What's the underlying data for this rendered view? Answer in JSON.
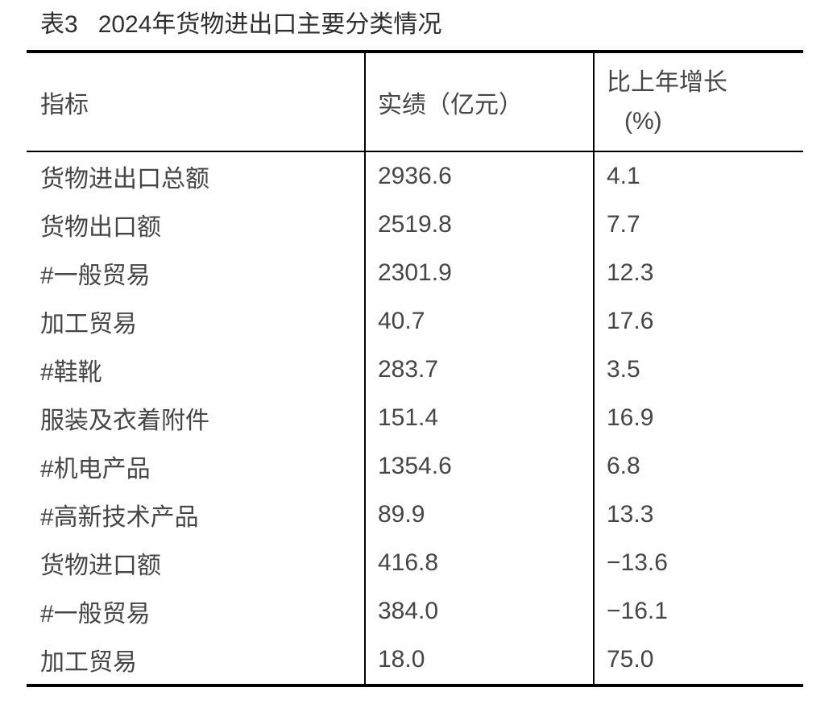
{
  "title": "表3   2024年货物进出口主要分类情况",
  "table": {
    "header": {
      "indicator": "指标",
      "value": "实绩（亿元）",
      "growth_line1": "比上年增长",
      "growth_line2": "(%)"
    },
    "rows": [
      {
        "indicator": "货物进出口总额",
        "value": "2936.6",
        "growth": "4.1"
      },
      {
        "indicator": "货物出口额",
        "value": "2519.8",
        "growth": "7.7"
      },
      {
        "indicator": "#一般贸易",
        "value": "2301.9",
        "growth": "12.3"
      },
      {
        "indicator": "加工贸易",
        "value": "40.7",
        "growth": "17.6"
      },
      {
        "indicator": "#鞋靴",
        "value": "283.7",
        "growth": "3.5"
      },
      {
        "indicator": "服装及衣着附件",
        "value": "151.4",
        "growth": "16.9"
      },
      {
        "indicator": "#机电产品",
        "value": "1354.6",
        "growth": "6.8"
      },
      {
        "indicator": "#高新技术产品",
        "value": "89.9",
        "growth": "13.3"
      },
      {
        "indicator": "货物进口额",
        "value": "416.8",
        "growth": "−13.6"
      },
      {
        "indicator": "#一般贸易",
        "value": "384.0",
        "growth": "−16.1"
      },
      {
        "indicator": "加工贸易",
        "value": "18.0",
        "growth": "75.0"
      }
    ]
  },
  "colors": {
    "background": "#ffffff",
    "border": "#000000",
    "title_text": "#2f2f2f",
    "body_text": "#464646"
  }
}
